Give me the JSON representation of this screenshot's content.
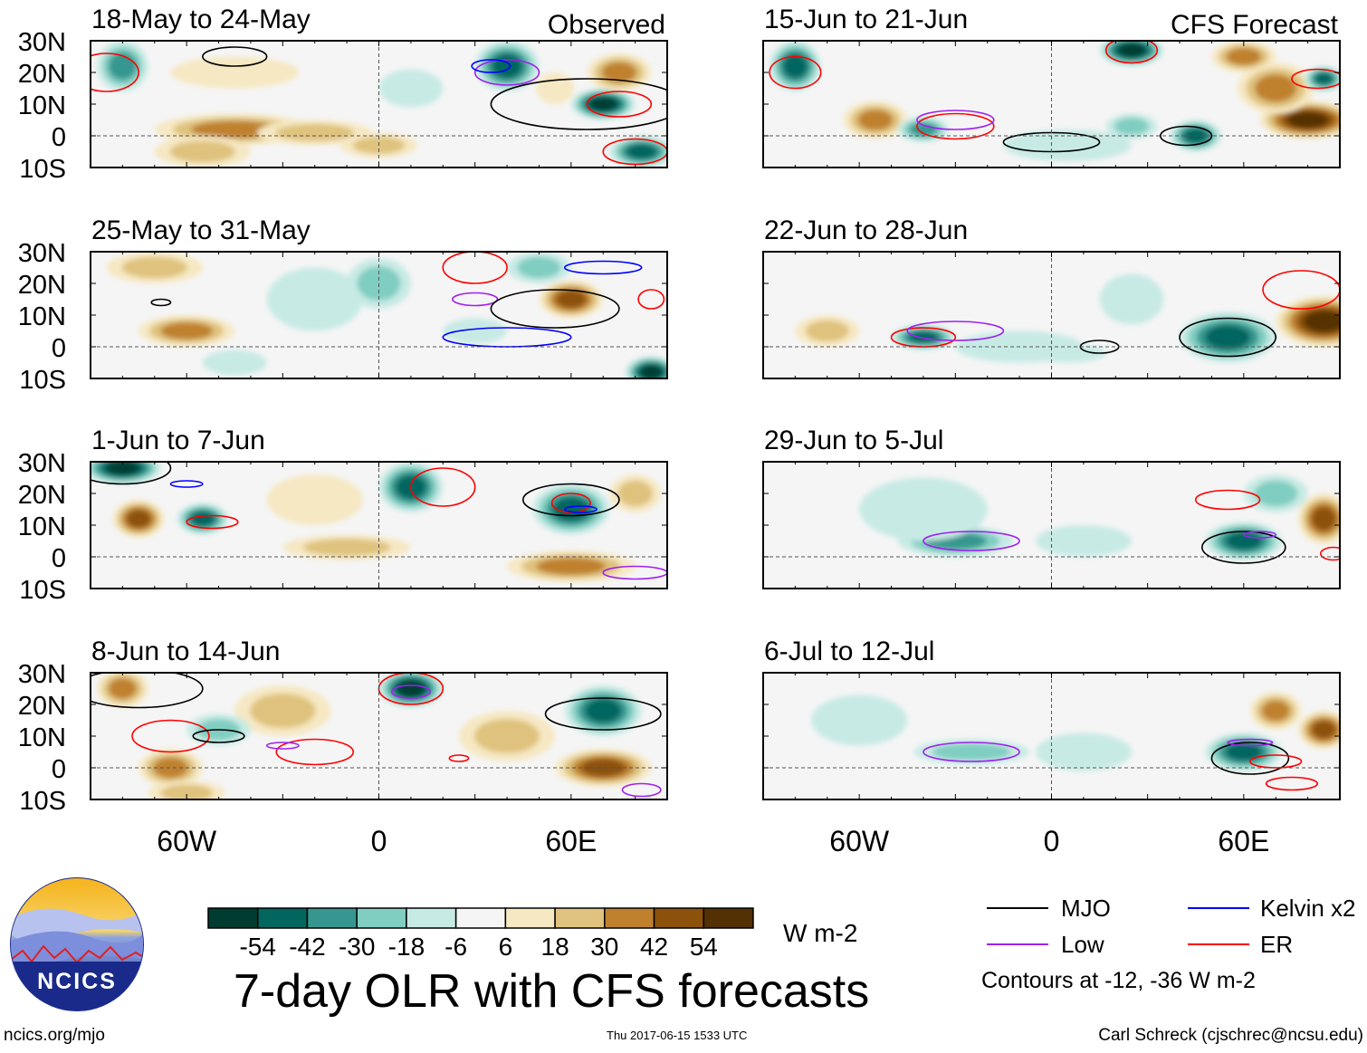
{
  "figure_title": "7-day OLR with CFS forecasts",
  "units": "W m-2",
  "header_labels": {
    "observed": "Observed",
    "forecast": "CFS Forecast"
  },
  "lat_ticks": [
    "30N",
    "20N",
    "10N",
    "0",
    "10S"
  ],
  "lon_ticks": [
    "60W",
    "0",
    "60E"
  ],
  "colorbar": {
    "colors": [
      "#003c30",
      "#01665e",
      "#35978f",
      "#80cdc1",
      "#c7eae5",
      "#f5f5f5",
      "#f6e8c3",
      "#dfc27d",
      "#bf812d",
      "#8c510a",
      "#543005"
    ],
    "labels": [
      "-54",
      "-42",
      "-30",
      "-18",
      "-6",
      "6",
      "18",
      "30",
      "42",
      "54"
    ]
  },
  "legend": {
    "items": [
      {
        "label": "MJO",
        "color": "#000000"
      },
      {
        "label": "Kelvin x2",
        "color": "#0000ff"
      },
      {
        "label": "Low",
        "color": "#a020f0"
      },
      {
        "label": "ER",
        "color": "#ff0000"
      }
    ],
    "contour_note": "Contours at -12, -36 W m-2"
  },
  "logo_text": "NCICS",
  "footer": {
    "left": "ncics.org/mjo",
    "center": "Thu 2017-06-15 1533 UTC",
    "right": "Carl Schreck (cjschrec@ncsu.edu)"
  },
  "panels": [
    {
      "title": "18-May to 24-May",
      "col": 0,
      "row": 0,
      "tag": "observed",
      "blobs": [
        [
          -45,
          2,
          25,
          5,
          36
        ],
        [
          -20,
          1,
          18,
          4,
          24
        ],
        [
          -55,
          -5,
          15,
          5,
          20
        ],
        [
          -80,
          22,
          8,
          8,
          -30
        ],
        [
          -45,
          20,
          20,
          5,
          12
        ],
        [
          40,
          22,
          10,
          8,
          -42
        ],
        [
          70,
          10,
          10,
          5,
          -60
        ],
        [
          82,
          -5,
          10,
          5,
          -48
        ],
        [
          75,
          20,
          10,
          6,
          30
        ],
        [
          55,
          15,
          6,
          5,
          12
        ],
        [
          10,
          15,
          10,
          6,
          -12
        ],
        [
          0,
          -3,
          12,
          4,
          15
        ]
      ],
      "contours": [
        [
          "mjo",
          -45,
          25,
          10,
          3
        ],
        [
          "mjo",
          65,
          10,
          30,
          8
        ],
        [
          "er",
          -85,
          20,
          10,
          6
        ],
        [
          "er",
          75,
          10,
          10,
          4
        ],
        [
          "low",
          40,
          20,
          10,
          4
        ],
        [
          "kelvin",
          35,
          22,
          6,
          2
        ],
        [
          "er",
          80,
          -5,
          10,
          4
        ]
      ]
    },
    {
      "title": "15-Jun to 21-Jun",
      "col": 1,
      "row": 0,
      "tag": "forecast",
      "blobs": [
        [
          -80,
          22,
          8,
          8,
          -48
        ],
        [
          25,
          27,
          10,
          5,
          -54
        ],
        [
          80,
          5,
          15,
          6,
          54
        ],
        [
          70,
          15,
          12,
          8,
          36
        ],
        [
          -55,
          5,
          10,
          6,
          36
        ],
        [
          -40,
          2,
          8,
          4,
          -30
        ],
        [
          45,
          0,
          8,
          5,
          -48
        ],
        [
          60,
          25,
          10,
          5,
          30
        ],
        [
          85,
          18,
          6,
          4,
          -42
        ],
        [
          5,
          -3,
          20,
          5,
          -12
        ],
        [
          25,
          3,
          8,
          4,
          -18
        ]
      ],
      "contours": [
        [
          "er",
          -80,
          20,
          8,
          5
        ],
        [
          "er",
          25,
          27,
          8,
          4
        ],
        [
          "er",
          -30,
          3,
          12,
          4
        ],
        [
          "low",
          -30,
          5,
          12,
          3
        ],
        [
          "mjo",
          0,
          -2,
          15,
          3
        ],
        [
          "mjo",
          42,
          0,
          8,
          3
        ],
        [
          "er",
          83,
          18,
          8,
          3
        ]
      ]
    },
    {
      "title": "25-May to 31-May",
      "col": 0,
      "row": 1,
      "tag": "",
      "blobs": [
        [
          -70,
          25,
          15,
          5,
          18
        ],
        [
          -60,
          5,
          15,
          5,
          30
        ],
        [
          -20,
          15,
          15,
          10,
          -12
        ],
        [
          0,
          20,
          10,
          8,
          -18
        ],
        [
          60,
          15,
          10,
          6,
          42
        ],
        [
          85,
          -8,
          8,
          5,
          -54
        ],
        [
          30,
          5,
          10,
          4,
          -12
        ],
        [
          -45,
          -5,
          10,
          4,
          -12
        ],
        [
          50,
          25,
          10,
          5,
          -18
        ]
      ],
      "contours": [
        [
          "er",
          30,
          25,
          10,
          5
        ],
        [
          "low",
          30,
          15,
          7,
          2
        ],
        [
          "mjo",
          55,
          12,
          20,
          6
        ],
        [
          "kelvin",
          40,
          3,
          20,
          3
        ],
        [
          "kelvin",
          70,
          25,
          12,
          2
        ],
        [
          "er",
          85,
          15,
          4,
          3
        ],
        [
          "mjo",
          -68,
          14,
          3,
          1
        ]
      ]
    },
    {
      "title": "22-Jun to 28-Jun",
      "col": 1,
      "row": 1,
      "tag": "",
      "blobs": [
        [
          -40,
          3,
          10,
          4,
          -42
        ],
        [
          85,
          8,
          15,
          8,
          54
        ],
        [
          55,
          3,
          15,
          8,
          -42
        ],
        [
          -70,
          5,
          10,
          5,
          18
        ],
        [
          5,
          -2,
          12,
          3,
          -12
        ],
        [
          25,
          15,
          10,
          8,
          -12
        ],
        [
          -10,
          0,
          20,
          5,
          -6
        ]
      ],
      "contours": [
        [
          "er",
          -40,
          3,
          10,
          3
        ],
        [
          "low",
          -30,
          5,
          15,
          3
        ],
        [
          "mjo",
          55,
          3,
          15,
          6
        ],
        [
          "mjo",
          15,
          0,
          6,
          2
        ],
        [
          "er",
          78,
          18,
          12,
          6
        ]
      ]
    },
    {
      "title": "1-Jun to 7-Jun",
      "col": 0,
      "row": 2,
      "tag": "",
      "blobs": [
        [
          -80,
          28,
          12,
          5,
          -54
        ],
        [
          -75,
          12,
          8,
          6,
          42
        ],
        [
          -55,
          12,
          8,
          5,
          -42
        ],
        [
          10,
          22,
          10,
          8,
          -42
        ],
        [
          60,
          15,
          12,
          8,
          -42
        ],
        [
          60,
          -3,
          20,
          5,
          36
        ],
        [
          -10,
          3,
          20,
          4,
          18
        ],
        [
          80,
          20,
          8,
          6,
          24
        ],
        [
          -20,
          18,
          15,
          8,
          12
        ]
      ],
      "contours": [
        [
          "mjo",
          -80,
          28,
          15,
          5
        ],
        [
          "kelvin",
          -60,
          23,
          5,
          1
        ],
        [
          "er",
          -52,
          11,
          8,
          2
        ],
        [
          "er",
          20,
          22,
          10,
          6
        ],
        [
          "mjo",
          60,
          18,
          15,
          5
        ],
        [
          "er",
          60,
          17,
          6,
          3
        ],
        [
          "kelvin",
          63,
          15,
          5,
          1
        ],
        [
          "low",
          80,
          -5,
          10,
          2
        ]
      ]
    },
    {
      "title": "29-Jun to 5-Jul",
      "col": 1,
      "row": 2,
      "tag": "",
      "blobs": [
        [
          -30,
          5,
          18,
          5,
          -30
        ],
        [
          60,
          5,
          12,
          6,
          -42
        ],
        [
          85,
          12,
          8,
          8,
          42
        ],
        [
          70,
          20,
          10,
          6,
          -18
        ],
        [
          -40,
          15,
          20,
          10,
          -6
        ],
        [
          10,
          5,
          15,
          5,
          -6
        ]
      ],
      "contours": [
        [
          "low",
          -25,
          5,
          15,
          3
        ],
        [
          "mjo",
          60,
          3,
          13,
          5
        ],
        [
          "er",
          55,
          18,
          10,
          3
        ],
        [
          "low",
          65,
          7,
          5,
          1
        ],
        [
          "er",
          88,
          1,
          4,
          2
        ]
      ]
    },
    {
      "title": "8-Jun to 14-Jun",
      "col": 0,
      "row": 3,
      "tag": "",
      "blobs": [
        [
          10,
          25,
          10,
          6,
          -54
        ],
        [
          70,
          18,
          12,
          8,
          -42
        ],
        [
          70,
          0,
          15,
          6,
          42
        ],
        [
          -65,
          0,
          10,
          6,
          30
        ],
        [
          -30,
          18,
          15,
          8,
          18
        ],
        [
          -80,
          25,
          8,
          6,
          30
        ],
        [
          40,
          10,
          15,
          8,
          24
        ],
        [
          -50,
          12,
          10,
          5,
          -18
        ],
        [
          -60,
          -8,
          12,
          4,
          24
        ]
      ],
      "contours": [
        [
          "mjo",
          -75,
          25,
          20,
          6
        ],
        [
          "er",
          -65,
          10,
          12,
          5
        ],
        [
          "mjo",
          -50,
          10,
          8,
          2
        ],
        [
          "er",
          10,
          25,
          10,
          5
        ],
        [
          "low",
          10,
          24,
          6,
          2
        ],
        [
          "er",
          -20,
          5,
          12,
          4
        ],
        [
          "low",
          -30,
          7,
          5,
          1
        ],
        [
          "mjo",
          70,
          17,
          18,
          5
        ],
        [
          "er",
          25,
          3,
          3,
          1
        ],
        [
          "low",
          82,
          -7,
          6,
          2
        ]
      ]
    },
    {
      "title": "6-Jul to 12-Jul",
      "col": 1,
      "row": 3,
      "tag": "",
      "blobs": [
        [
          -25,
          5,
          18,
          4,
          -18
        ],
        [
          60,
          5,
          12,
          6,
          -42
        ],
        [
          85,
          12,
          8,
          6,
          42
        ],
        [
          70,
          18,
          8,
          6,
          30
        ],
        [
          -60,
          15,
          15,
          8,
          -6
        ],
        [
          10,
          5,
          15,
          6,
          -6
        ]
      ],
      "contours": [
        [
          "low",
          -25,
          5,
          15,
          3
        ],
        [
          "mjo",
          62,
          3,
          12,
          5
        ],
        [
          "low",
          62,
          8,
          7,
          1
        ],
        [
          "er",
          70,
          2,
          8,
          2
        ],
        [
          "er",
          75,
          -5,
          8,
          2
        ]
      ]
    }
  ]
}
